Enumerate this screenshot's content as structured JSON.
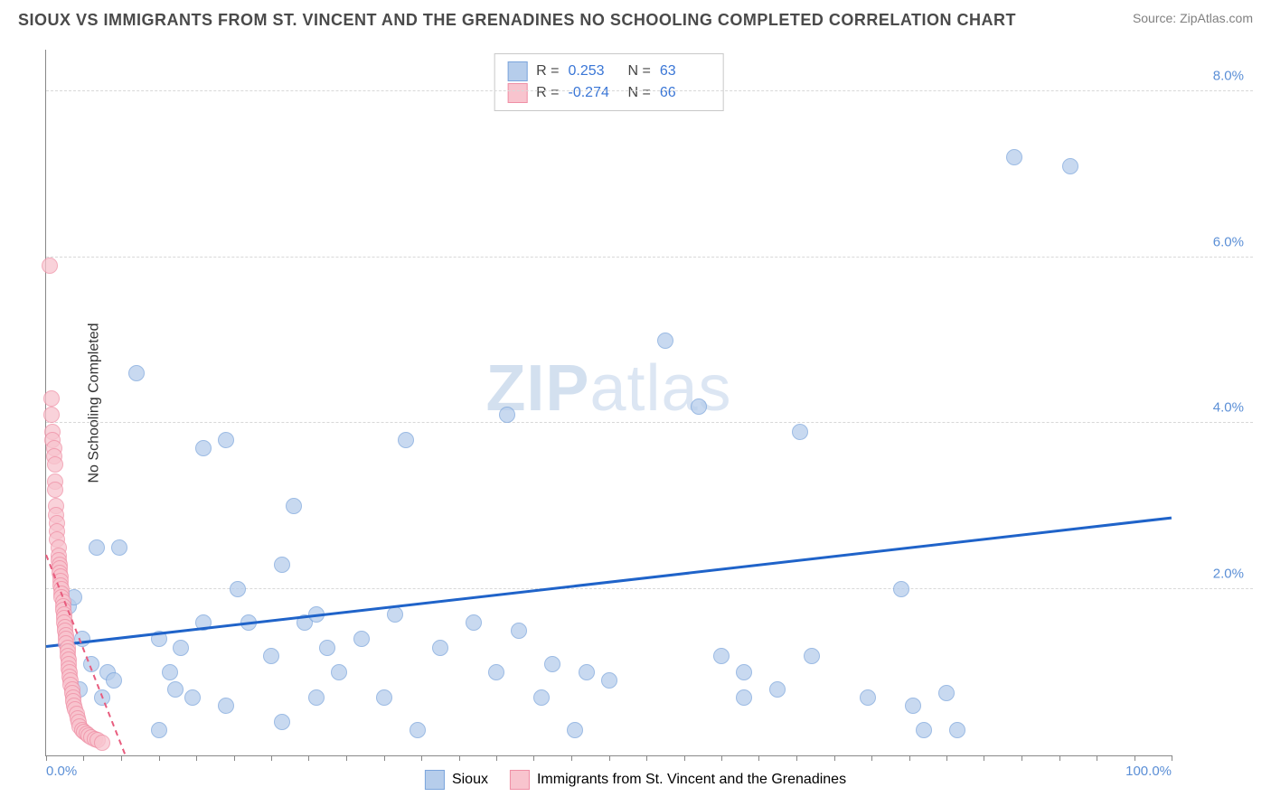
{
  "header": {
    "title": "SIOUX VS IMMIGRANTS FROM ST. VINCENT AND THE GRENADINES NO SCHOOLING COMPLETED CORRELATION CHART",
    "source": "Source: ZipAtlas.com"
  },
  "chart": {
    "type": "scatter",
    "y_axis_title": "No Schooling Completed",
    "xlim": [
      0,
      100
    ],
    "ylim": [
      0,
      8.5
    ],
    "x_ticks_minor": [
      0,
      3.3,
      6.7,
      10,
      13.3,
      16.7,
      20,
      23.3,
      26.7,
      30,
      33.3,
      36.7,
      40,
      43.3,
      46.7,
      50,
      53.3,
      56.7,
      60,
      63.3,
      66.7,
      70,
      73.3,
      76.7,
      80,
      83.3,
      86.7,
      90,
      93.3,
      96.7,
      100
    ],
    "x_tick_labels": [
      {
        "pos": 0,
        "label": "0.0%",
        "align": "left"
      },
      {
        "pos": 100,
        "label": "100.0%",
        "align": "right"
      }
    ],
    "y_grid": [
      2.0,
      4.0,
      6.0,
      8.0
    ],
    "y_tick_labels": [
      {
        "pos": 2.0,
        "label": "2.0%"
      },
      {
        "pos": 4.0,
        "label": "4.0%"
      },
      {
        "pos": 6.0,
        "label": "6.0%"
      },
      {
        "pos": 8.0,
        "label": "8.0%"
      }
    ],
    "background_color": "#ffffff",
    "grid_color": "#d8d8d8",
    "axis_color": "#888888",
    "watermark": {
      "bold": "ZIP",
      "rest": "atlas"
    },
    "series": [
      {
        "name": "Sioux",
        "color_fill": "#b6cdeb",
        "color_stroke": "#7ba5dc",
        "marker_radius": 9,
        "marker_opacity": 0.75,
        "trend": {
          "color": "#1f63c9",
          "width": 2.5,
          "x1": 0,
          "y1": 1.3,
          "x2": 100,
          "y2": 2.85,
          "dash": "solid"
        },
        "points": [
          [
            2,
            1.8
          ],
          [
            2.5,
            1.9
          ],
          [
            3,
            0.8
          ],
          [
            3.2,
            1.4
          ],
          [
            4,
            1.1
          ],
          [
            4.5,
            2.5
          ],
          [
            5,
            0.7
          ],
          [
            5.5,
            1.0
          ],
          [
            6,
            0.9
          ],
          [
            6.5,
            2.5
          ],
          [
            8,
            4.6
          ],
          [
            10,
            1.4
          ],
          [
            10,
            0.3
          ],
          [
            11,
            1.0
          ],
          [
            11.5,
            0.8
          ],
          [
            12,
            1.3
          ],
          [
            13,
            0.7
          ],
          [
            14,
            1.6
          ],
          [
            14,
            3.7
          ],
          [
            16,
            3.8
          ],
          [
            16,
            0.6
          ],
          [
            17,
            2.0
          ],
          [
            18,
            1.6
          ],
          [
            20,
            1.2
          ],
          [
            21,
            2.3
          ],
          [
            21,
            0.4
          ],
          [
            22,
            3.0
          ],
          [
            23,
            1.6
          ],
          [
            24,
            0.7
          ],
          [
            24,
            1.7
          ],
          [
            25,
            1.3
          ],
          [
            26,
            1.0
          ],
          [
            28,
            1.4
          ],
          [
            30,
            0.7
          ],
          [
            31,
            1.7
          ],
          [
            32,
            3.8
          ],
          [
            33,
            0.3
          ],
          [
            35,
            1.3
          ],
          [
            38,
            1.6
          ],
          [
            40,
            1.0
          ],
          [
            41,
            4.1
          ],
          [
            42,
            1.5
          ],
          [
            44,
            0.7
          ],
          [
            45,
            1.1
          ],
          [
            47,
            0.3
          ],
          [
            48,
            1.0
          ],
          [
            50,
            0.9
          ],
          [
            55,
            5.0
          ],
          [
            58,
            4.2
          ],
          [
            60,
            1.2
          ],
          [
            62,
            0.7
          ],
          [
            62,
            1.0
          ],
          [
            65,
            0.8
          ],
          [
            67,
            3.9
          ],
          [
            68,
            1.2
          ],
          [
            73,
            0.7
          ],
          [
            76,
            2.0
          ],
          [
            77,
            0.6
          ],
          [
            78,
            0.3
          ],
          [
            80,
            0.75
          ],
          [
            81,
            0.3
          ],
          [
            86,
            7.2
          ],
          [
            91,
            7.1
          ]
        ]
      },
      {
        "name": "Immigrants from St. Vincent and the Grenadines",
        "color_fill": "#f8c4ce",
        "color_stroke": "#ef8fa5",
        "marker_radius": 9,
        "marker_opacity": 0.75,
        "trend": {
          "color": "#e85c7e",
          "width": 2,
          "x1": 0,
          "y1": 2.4,
          "x2": 7,
          "y2": 0,
          "dash": "dashed"
        },
        "points": [
          [
            0.3,
            5.9
          ],
          [
            0.5,
            4.3
          ],
          [
            0.5,
            4.1
          ],
          [
            0.6,
            3.9
          ],
          [
            0.6,
            3.8
          ],
          [
            0.7,
            3.7
          ],
          [
            0.7,
            3.6
          ],
          [
            0.8,
            3.5
          ],
          [
            0.8,
            3.3
          ],
          [
            0.8,
            3.2
          ],
          [
            0.9,
            3.0
          ],
          [
            0.9,
            2.9
          ],
          [
            1.0,
            2.8
          ],
          [
            1.0,
            2.7
          ],
          [
            1.0,
            2.6
          ],
          [
            1.1,
            2.5
          ],
          [
            1.1,
            2.4
          ],
          [
            1.1,
            2.35
          ],
          [
            1.2,
            2.3
          ],
          [
            1.2,
            2.25
          ],
          [
            1.2,
            2.2
          ],
          [
            1.3,
            2.15
          ],
          [
            1.3,
            2.1
          ],
          [
            1.3,
            2.05
          ],
          [
            1.4,
            2.0
          ],
          [
            1.4,
            1.95
          ],
          [
            1.4,
            1.9
          ],
          [
            1.5,
            1.85
          ],
          [
            1.5,
            1.8
          ],
          [
            1.5,
            1.75
          ],
          [
            1.6,
            1.7
          ],
          [
            1.6,
            1.65
          ],
          [
            1.6,
            1.6
          ],
          [
            1.7,
            1.55
          ],
          [
            1.7,
            1.5
          ],
          [
            1.8,
            1.45
          ],
          [
            1.8,
            1.4
          ],
          [
            1.8,
            1.35
          ],
          [
            1.9,
            1.3
          ],
          [
            1.9,
            1.25
          ],
          [
            1.9,
            1.2
          ],
          [
            2.0,
            1.15
          ],
          [
            2.0,
            1.1
          ],
          [
            2.0,
            1.05
          ],
          [
            2.1,
            1.0
          ],
          [
            2.1,
            0.95
          ],
          [
            2.2,
            0.9
          ],
          [
            2.2,
            0.85
          ],
          [
            2.3,
            0.8
          ],
          [
            2.3,
            0.75
          ],
          [
            2.4,
            0.7
          ],
          [
            2.4,
            0.65
          ],
          [
            2.5,
            0.6
          ],
          [
            2.6,
            0.55
          ],
          [
            2.7,
            0.5
          ],
          [
            2.8,
            0.45
          ],
          [
            2.9,
            0.4
          ],
          [
            3.0,
            0.35
          ],
          [
            3.2,
            0.3
          ],
          [
            3.4,
            0.28
          ],
          [
            3.6,
            0.26
          ],
          [
            3.8,
            0.24
          ],
          [
            4.0,
            0.22
          ],
          [
            4.3,
            0.2
          ],
          [
            4.6,
            0.18
          ],
          [
            5.0,
            0.15
          ]
        ]
      }
    ],
    "stats_box": {
      "rows": [
        {
          "swatch_fill": "#b6cdeb",
          "swatch_stroke": "#7ba5dc",
          "r_label": "R =",
          "r_val": "0.253",
          "n_label": "N =",
          "n_val": "63"
        },
        {
          "swatch_fill": "#f8c4ce",
          "swatch_stroke": "#ef8fa5",
          "r_label": "R =",
          "r_val": "-0.274",
          "n_label": "N =",
          "n_val": "66"
        }
      ]
    },
    "legend": [
      {
        "swatch_fill": "#b6cdeb",
        "swatch_stroke": "#7ba5dc",
        "label": "Sioux"
      },
      {
        "swatch_fill": "#f8c4ce",
        "swatch_stroke": "#ef8fa5",
        "label": "Immigrants from St. Vincent and the Grenadines"
      }
    ]
  }
}
